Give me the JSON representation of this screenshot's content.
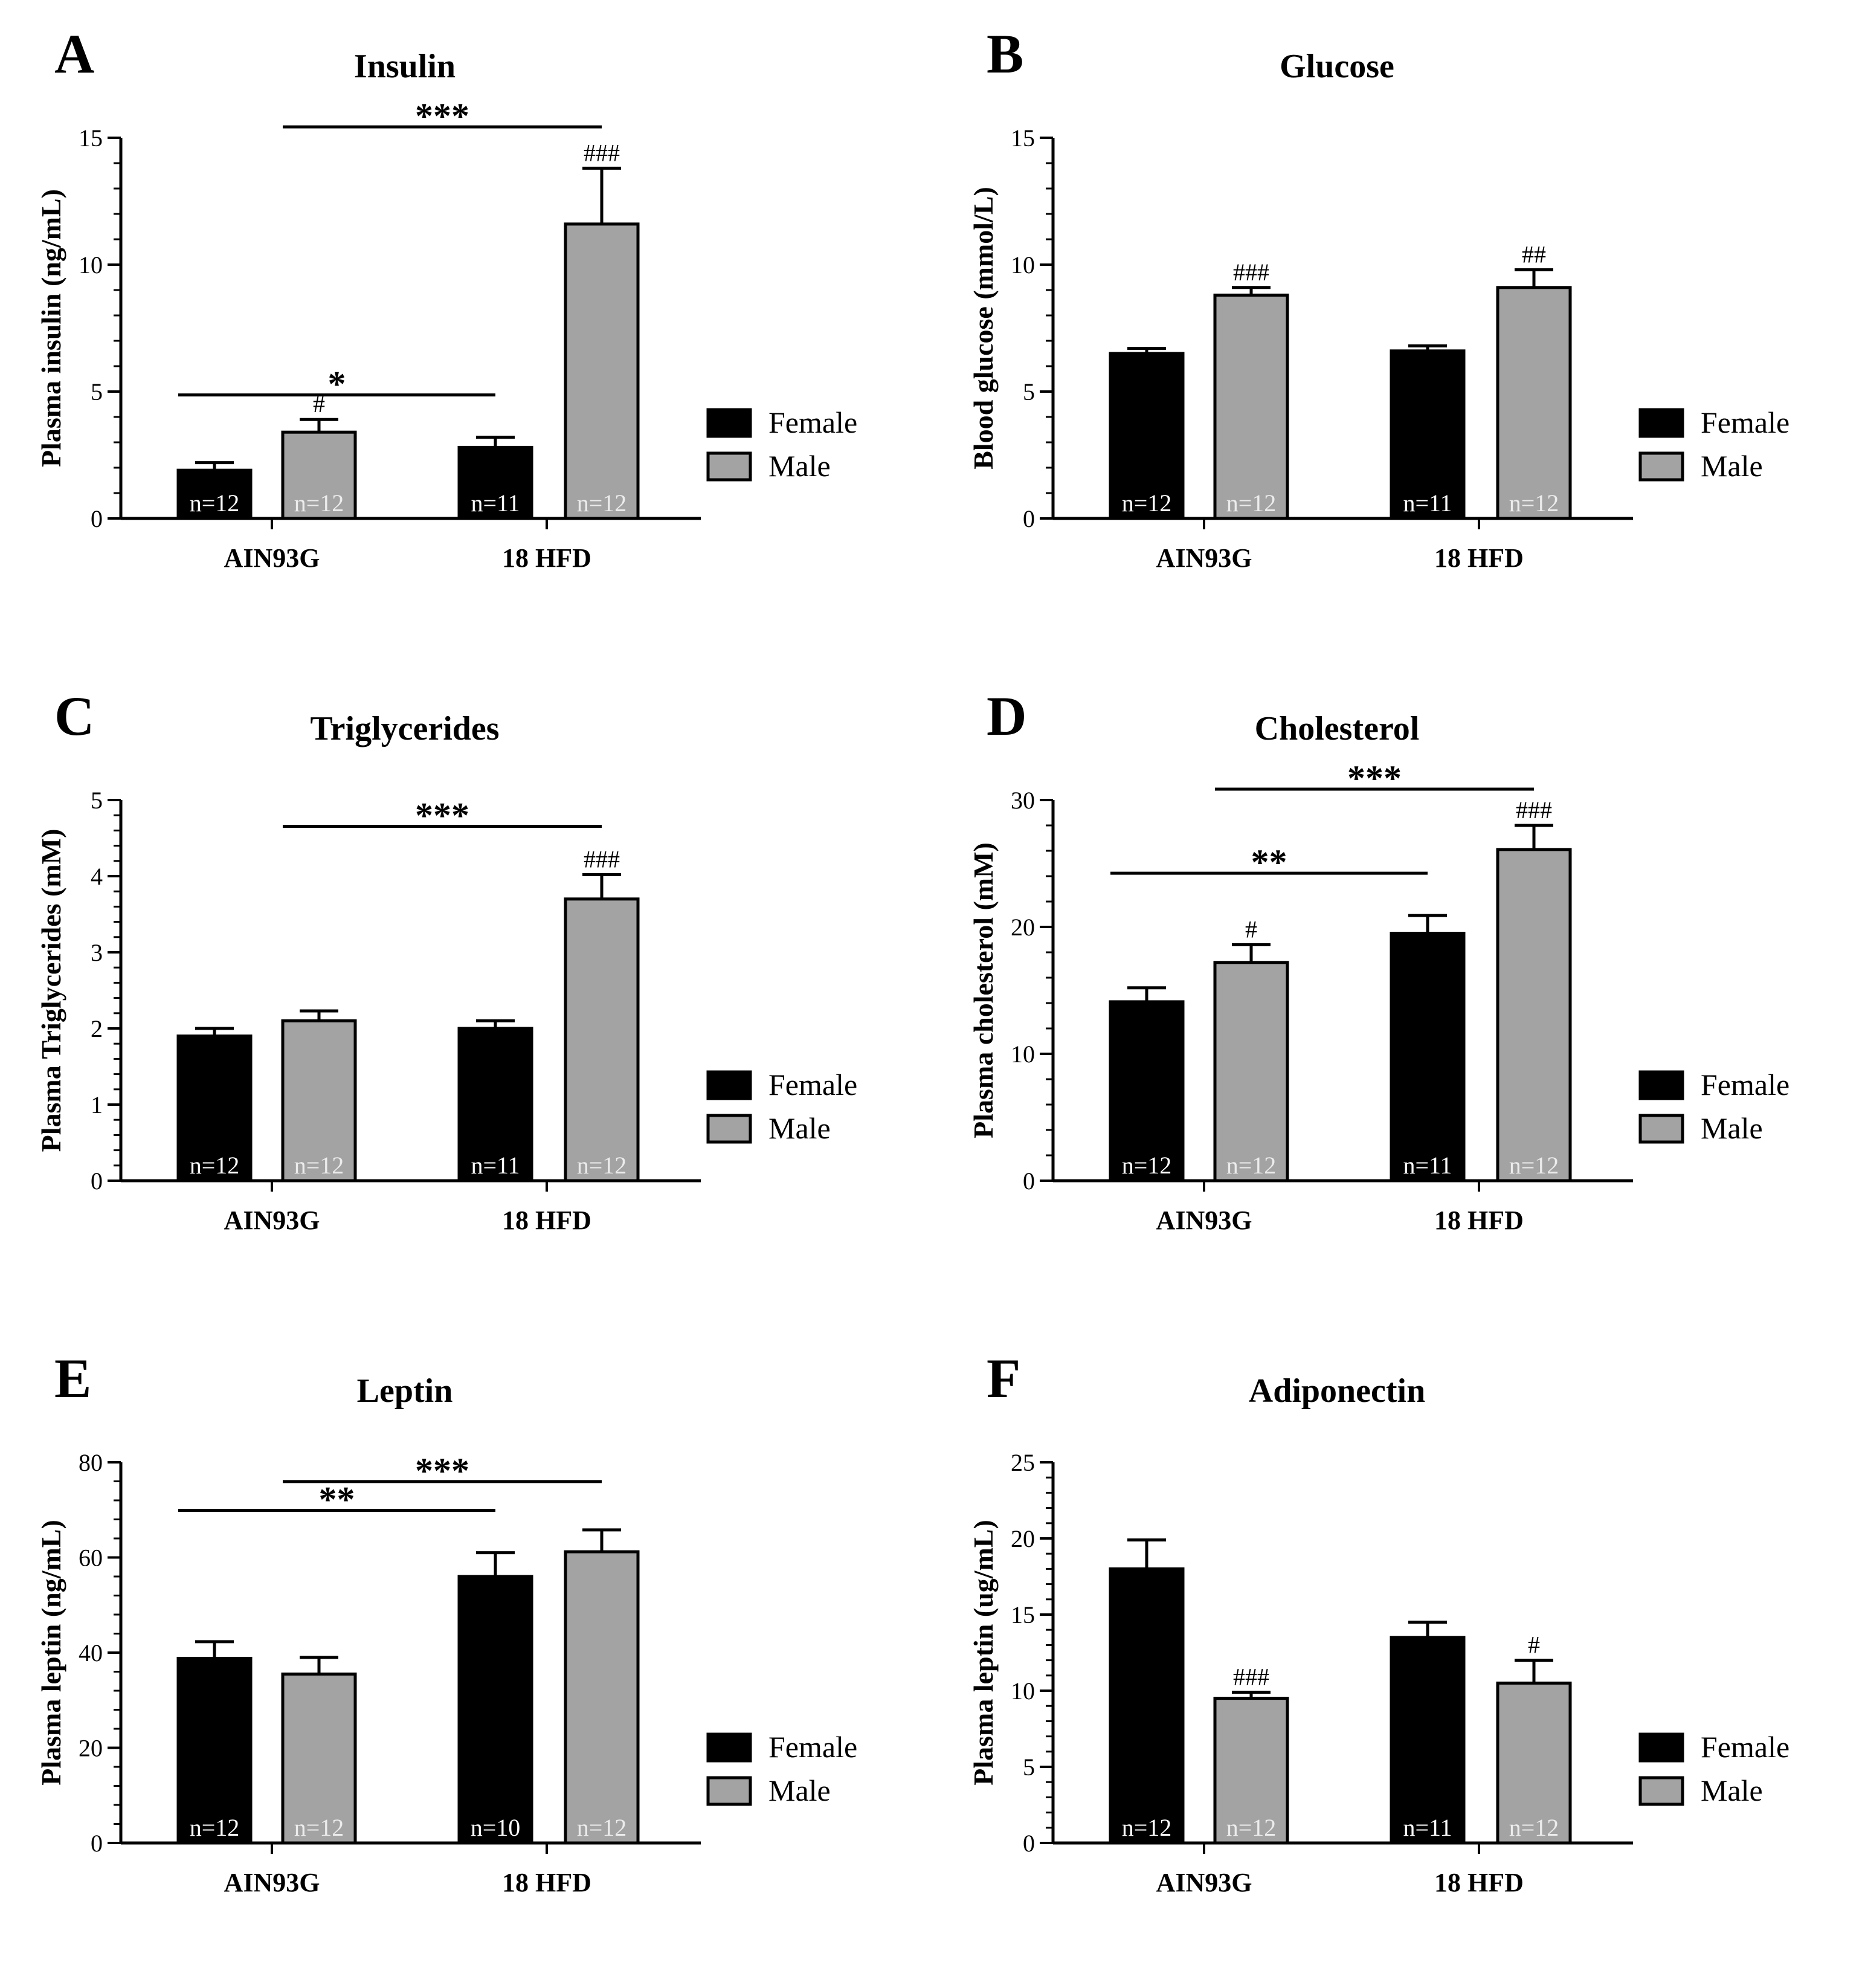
{
  "colors": {
    "female": "#000000",
    "male": "#a3a3a3",
    "axis": "#000000",
    "n_text_female": "#ffffff",
    "n_text_male": "#ececec"
  },
  "chart_data": [
    {
      "id": "A",
      "panel_label": "A",
      "type": "bar",
      "title": "Insulin",
      "ylabel": "Plasma insulin (ng/mL)",
      "ylim": [
        0,
        15
      ],
      "yticks": [
        "0",
        "5",
        "10",
        "15"
      ],
      "categories": [
        "AIN93G",
        "18 HFD"
      ],
      "series": [
        {
          "name": "Female",
          "values": [
            1.9,
            2.8
          ],
          "errors": [
            0.3,
            0.4
          ],
          "n": [
            "n=12",
            "n=11"
          ],
          "marks": [
            "",
            ""
          ]
        },
        {
          "name": "Male",
          "values": [
            3.4,
            11.6
          ],
          "errors": [
            0.5,
            2.2
          ],
          "n": [
            "n=12",
            "n=12"
          ],
          "marks": [
            "#",
            "###"
          ]
        }
      ],
      "comparisons": [
        {
          "from": [
            0,
            0
          ],
          "to": [
            1,
            0
          ],
          "label": "*"
        },
        {
          "from": [
            0,
            1
          ],
          "to": [
            1,
            1
          ],
          "label": "***"
        }
      ],
      "legend": [
        "Female",
        "Male"
      ]
    },
    {
      "id": "B",
      "panel_label": "B",
      "type": "bar",
      "title": "Glucose",
      "ylabel": "Blood glucose (mmol/L)",
      "ylim": [
        0,
        15
      ],
      "yticks": [
        "0",
        "5",
        "10",
        "15"
      ],
      "categories": [
        "AIN93G",
        "18 HFD"
      ],
      "series": [
        {
          "name": "Female",
          "values": [
            6.5,
            6.6
          ],
          "errors": [
            0.2,
            0.2
          ],
          "n": [
            "n=12",
            "n=11"
          ],
          "marks": [
            "",
            ""
          ]
        },
        {
          "name": "Male",
          "values": [
            8.8,
            9.1
          ],
          "errors": [
            0.3,
            0.7
          ],
          "n": [
            "n=12",
            "n=12"
          ],
          "marks": [
            "###",
            "##"
          ]
        }
      ],
      "comparisons": [],
      "legend": [
        "Female",
        "Male"
      ]
    },
    {
      "id": "C",
      "panel_label": "C",
      "type": "bar",
      "title": "Triglycerides",
      "ylabel": "Plasma Triglycerides (mM)",
      "ylim": [
        0,
        5
      ],
      "yticks": [
        "0",
        "1",
        "2",
        "3",
        "4",
        "5"
      ],
      "categories": [
        "AIN93G",
        "18 HFD"
      ],
      "series": [
        {
          "name": "Female",
          "values": [
            1.9,
            2.0
          ],
          "errors": [
            0.1,
            0.1
          ],
          "n": [
            "n=12",
            "n=11"
          ],
          "marks": [
            "",
            ""
          ]
        },
        {
          "name": "Male",
          "values": [
            2.1,
            3.7
          ],
          "errors": [
            0.13,
            0.32
          ],
          "n": [
            "n=12",
            "n=12"
          ],
          "marks": [
            "",
            "###"
          ]
        }
      ],
      "comparisons": [
        {
          "from": [
            0,
            1
          ],
          "to": [
            1,
            1
          ],
          "label": "***"
        }
      ],
      "legend": [
        "Female",
        "Male"
      ]
    },
    {
      "id": "D",
      "panel_label": "D",
      "type": "bar",
      "title": "Cholesterol",
      "ylabel": "Plasma cholesterol (mM)",
      "ylim": [
        0,
        30
      ],
      "yticks": [
        "0",
        "10",
        "20",
        "30"
      ],
      "categories": [
        "AIN93G",
        "18 HFD"
      ],
      "series": [
        {
          "name": "Female",
          "values": [
            14.1,
            19.5
          ],
          "errors": [
            1.1,
            1.4
          ],
          "n": [
            "n=12",
            "n=11"
          ],
          "marks": [
            "",
            ""
          ]
        },
        {
          "name": "Male",
          "values": [
            17.2,
            26.1
          ],
          "errors": [
            1.4,
            1.9
          ],
          "n": [
            "n=12",
            "n=12"
          ],
          "marks": [
            "#",
            "###"
          ]
        }
      ],
      "comparisons": [
        {
          "from": [
            0,
            0
          ],
          "to": [
            1,
            0
          ],
          "label": "**"
        },
        {
          "from": [
            0,
            1
          ],
          "to": [
            1,
            1
          ],
          "label": "***"
        }
      ],
      "legend": [
        "Female",
        "Male"
      ]
    },
    {
      "id": "E",
      "panel_label": "E",
      "type": "bar",
      "title": "Leptin",
      "ylabel": "Plasma leptin (ng/mL)",
      "ylim": [
        0,
        80
      ],
      "yticks": [
        "0",
        "20",
        "40",
        "60",
        "80"
      ],
      "categories": [
        "AIN93G",
        "18 HFD"
      ],
      "series": [
        {
          "name": "Female",
          "values": [
            38.8,
            56.0
          ],
          "errors": [
            3.5,
            5.0
          ],
          "n": [
            "n=12",
            "n=10"
          ],
          "marks": [
            "",
            ""
          ]
        },
        {
          "name": "Male",
          "values": [
            35.5,
            61.2
          ],
          "errors": [
            3.5,
            4.6
          ],
          "n": [
            "n=12",
            "n=12"
          ],
          "marks": [
            "",
            ""
          ]
        }
      ],
      "comparisons": [
        {
          "from": [
            0,
            0
          ],
          "to": [
            1,
            0
          ],
          "label": "**"
        },
        {
          "from": [
            0,
            1
          ],
          "to": [
            1,
            1
          ],
          "label": "***"
        }
      ],
      "legend": [
        "Female",
        "Male"
      ]
    },
    {
      "id": "F",
      "panel_label": "F",
      "type": "bar",
      "title": "Adiponectin",
      "ylabel": "Plasma leptin (ug/mL)",
      "ylim": [
        0,
        25
      ],
      "yticks": [
        "0",
        "5",
        "10",
        "15",
        "20",
        "25"
      ],
      "categories": [
        "AIN93G",
        "18 HFD"
      ],
      "series": [
        {
          "name": "Female",
          "values": [
            18.0,
            13.5
          ],
          "errors": [
            1.9,
            1.0
          ],
          "n": [
            "n=12",
            "n=11"
          ],
          "marks": [
            "",
            ""
          ]
        },
        {
          "name": "Male",
          "values": [
            9.5,
            10.5
          ],
          "errors": [
            0.4,
            1.5
          ],
          "n": [
            "n=12",
            "n=12"
          ],
          "marks": [
            "###",
            "#"
          ]
        }
      ],
      "comparisons": [],
      "legend": [
        "Female",
        "Male"
      ]
    }
  ]
}
